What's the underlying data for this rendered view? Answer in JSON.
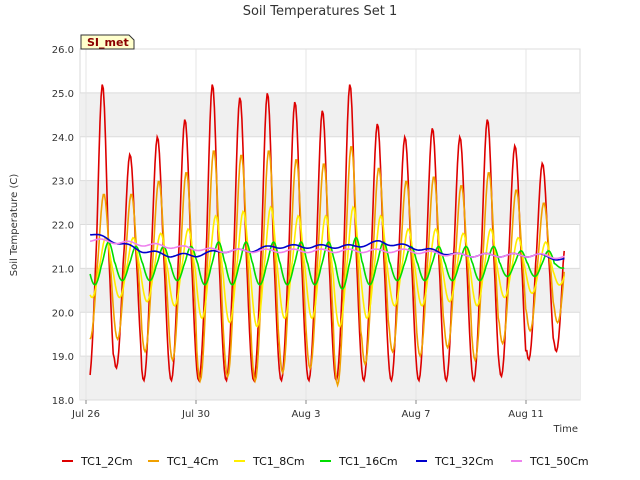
{
  "chart_data": {
    "type": "line",
    "title": "Soil Temperatures Set 1",
    "xlabel": "Time",
    "ylabel": "Soil Temperature (C)",
    "ylim": [
      18.0,
      26.0
    ],
    "y_ticks": [
      "18.0",
      "19.0",
      "20.0",
      "21.0",
      "22.0",
      "23.0",
      "24.0",
      "25.0",
      "26.0"
    ],
    "x_ticks": [
      {
        "day": 0,
        "label": "Jul 26"
      },
      {
        "day": 4,
        "label": "Jul 30"
      },
      {
        "day": 8,
        "label": "Aug 3"
      },
      {
        "day": 12,
        "label": "Aug 7"
      },
      {
        "day": 16,
        "label": "Aug 11"
      }
    ],
    "x_range_days": [
      0,
      18
    ],
    "grid": true,
    "legend_position": "bottom",
    "annotation": "SI_met",
    "daily_peaks": {
      "days": [
        "Jul 26",
        "Jul 27",
        "Jul 28",
        "Jul 29",
        "Jul 30",
        "Jul 31",
        "Aug 1",
        "Aug 2",
        "Aug 3",
        "Aug 4",
        "Aug 5",
        "Aug 6",
        "Aug 7",
        "Aug 8",
        "Aug 9",
        "Aug 10",
        "Aug 11",
        "Aug 12"
      ],
      "TC1_2Cm_max": [
        null,
        23.6,
        24.0,
        24.4,
        25.2,
        24.9,
        25.0,
        24.8,
        24.6,
        25.2,
        24.3,
        24.0,
        24.2,
        24.0,
        24.4,
        23.8,
        23.4,
        23.2
      ],
      "TC1_2Cm_min": [
        19.7,
        18.7,
        18.4,
        18.1,
        18.3,
        18.6,
        18.7,
        18.9,
        18.7,
        18.8,
        19.0,
        18.5,
        18.3,
        18.6,
        18.9,
        18.8,
        18.5,
        18.1
      ]
    },
    "series": [
      {
        "name": "TC1_2Cm",
        "color": "#dd0000",
        "days": [
          25.2,
          23.6,
          24.0,
          24.4,
          25.2,
          24.9,
          25.0,
          24.8,
          24.6,
          25.2,
          24.3,
          24.0,
          24.2,
          24.0,
          24.4,
          23.8,
          23.4,
          23.2
        ],
        "start": 19.7,
        "end": 19.2
      },
      {
        "name": "TC1_4Cm",
        "color": "#f0a000",
        "days": [
          22.7,
          22.7,
          23.0,
          23.2,
          23.7,
          23.6,
          23.7,
          23.5,
          23.4,
          23.8,
          23.3,
          23.0,
          23.1,
          22.9,
          23.2,
          22.8,
          22.5,
          22.3
        ],
        "start": 20.3,
        "end": 19.6
      },
      {
        "name": "TC1_8Cm",
        "color": "#ffee00",
        "days": [
          21.7,
          21.7,
          21.8,
          21.9,
          22.2,
          22.3,
          22.4,
          22.2,
          22.2,
          22.4,
          22.2,
          21.9,
          21.9,
          21.8,
          21.9,
          21.7,
          21.6,
          21.4
        ],
        "start": 21.1,
        "end": 20.4
      },
      {
        "name": "TC1_16Cm",
        "color": "#00dd00",
        "days": [
          21.6,
          21.5,
          21.5,
          21.5,
          21.6,
          21.6,
          21.6,
          21.6,
          21.6,
          21.7,
          21.6,
          21.5,
          21.5,
          21.5,
          21.5,
          21.4,
          21.4,
          21.2
        ],
        "start": 21.6,
        "end": 20.9
      },
      {
        "name": "TC1_32Cm",
        "color": "#0000cc",
        "values": [
          21.8,
          21.6,
          21.4,
          21.3,
          21.3,
          21.4,
          21.4,
          21.5,
          21.5,
          21.5,
          21.5,
          21.6,
          21.5,
          21.4,
          21.3,
          21.3,
          21.3,
          21.3,
          21.2
        ]
      },
      {
        "name": "TC1_50Cm",
        "color": "#ee82ee",
        "values": [
          21.65,
          21.6,
          21.55,
          21.5,
          21.45,
          21.4,
          21.4,
          21.4,
          21.4,
          21.4,
          21.4,
          21.4,
          21.4,
          21.35,
          21.3,
          21.3,
          21.3,
          21.3,
          21.25
        ]
      }
    ]
  }
}
